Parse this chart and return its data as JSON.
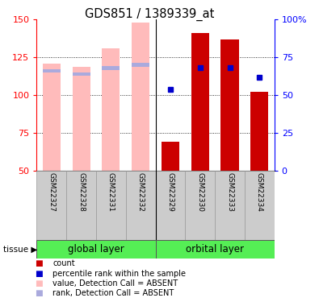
{
  "title": "GDS851 / 1389339_at",
  "samples": [
    "GSM22327",
    "GSM22328",
    "GSM22331",
    "GSM22332",
    "GSM22329",
    "GSM22330",
    "GSM22333",
    "GSM22334"
  ],
  "ylim_left": [
    50,
    150
  ],
  "ylim_right": [
    0,
    100
  ],
  "yticks_left": [
    50,
    75,
    100,
    125,
    150
  ],
  "yticks_right": [
    0,
    25,
    50,
    75,
    100
  ],
  "yticklabels_right": [
    "0",
    "25",
    "50",
    "75",
    "100%"
  ],
  "absent": [
    true,
    true,
    true,
    true,
    false,
    false,
    false,
    false
  ],
  "bar_values": [
    121,
    119,
    131,
    148,
    69,
    141,
    137,
    102
  ],
  "rank_values_left": [
    116,
    114,
    118,
    120,
    104,
    118,
    118,
    112
  ],
  "bar_color_present": "#cc0000",
  "bar_color_absent": "#ffbbbb",
  "rank_color_absent": "#aaaadd",
  "rank_color_present": "#0000cc",
  "bar_width": 0.6,
  "group_bg_color": "#55ee55",
  "sample_bg_color": "#cccccc",
  "grid_lines": [
    75,
    100,
    125
  ],
  "legend_items": [
    {
      "color": "#cc0000",
      "label": "count"
    },
    {
      "color": "#0000cc",
      "label": "percentile rank within the sample"
    },
    {
      "color": "#ffbbbb",
      "label": "value, Detection Call = ABSENT"
    },
    {
      "color": "#aaaadd",
      "label": "rank, Detection Call = ABSENT"
    }
  ]
}
